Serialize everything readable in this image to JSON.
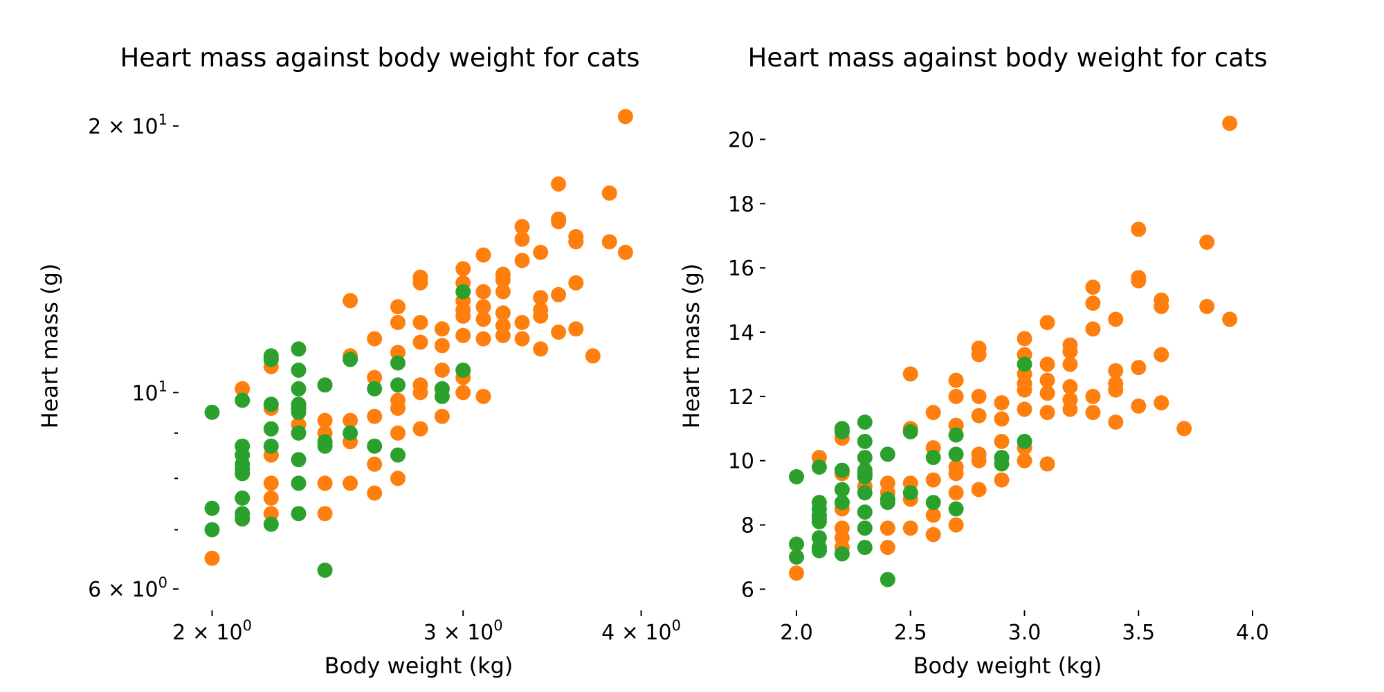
{
  "figure": {
    "background": "#ffffff"
  },
  "chart_data": [
    {
      "type": "scatter",
      "title": "Heart mass against body weight for cats",
      "xlabel": "Body weight (kg)",
      "ylabel": "Heart mass (g)",
      "xscale": "log",
      "yscale": "log",
      "xlim": [
        1.92,
        4.12
      ],
      "ylim": [
        5.8,
        21.0
      ],
      "xticks": [
        {
          "value": 2,
          "base": "2 × 10",
          "exp": "0"
        },
        {
          "value": 3,
          "base": "3 × 10",
          "exp": "0"
        },
        {
          "value": 4,
          "base": "4 × 10",
          "exp": "0"
        }
      ],
      "yticks": [
        {
          "value": 6,
          "base": "6 × 10",
          "exp": "0"
        },
        {
          "value": 10,
          "base": "10",
          "exp": "1"
        },
        {
          "value": 20,
          "base": "2 × 10",
          "exp": "1"
        }
      ],
      "yminor": [
        7,
        8,
        9
      ],
      "grid": false,
      "series_ref": "shared"
    },
    {
      "type": "scatter",
      "title": "Heart mass against body weight for cats",
      "xlabel": "Body weight (kg)",
      "ylabel": "Heart mass (g)",
      "xscale": "linear",
      "yscale": "linear",
      "xlim": [
        1.9,
        4.1
      ],
      "ylim": [
        5.6,
        21.0
      ],
      "xticks": [
        {
          "value": 2.0,
          "label": "2.0"
        },
        {
          "value": 2.5,
          "label": "2.5"
        },
        {
          "value": 3.0,
          "label": "3.0"
        },
        {
          "value": 3.5,
          "label": "3.5"
        },
        {
          "value": 4.0,
          "label": "4.0"
        }
      ],
      "yticks": [
        {
          "value": 6,
          "label": "6"
        },
        {
          "value": 8,
          "label": "8"
        },
        {
          "value": 10,
          "label": "10"
        },
        {
          "value": 12,
          "label": "12"
        },
        {
          "value": 14,
          "label": "14"
        },
        {
          "value": 16,
          "label": "16"
        },
        {
          "value": 18,
          "label": "18"
        },
        {
          "value": 20,
          "label": "20"
        }
      ],
      "grid": false,
      "series_ref": "shared"
    }
  ],
  "series": [
    {
      "color": "#ff7f0e",
      "points": [
        [
          2.0,
          6.5
        ],
        [
          2.1,
          10.1
        ],
        [
          2.1,
          7.2
        ],
        [
          2.2,
          10.7
        ],
        [
          2.2,
          9.6
        ],
        [
          2.2,
          8.5
        ],
        [
          2.2,
          7.9
        ],
        [
          2.2,
          7.6
        ],
        [
          2.2,
          7.3
        ],
        [
          2.3,
          9.6
        ],
        [
          2.3,
          9.2
        ],
        [
          2.3,
          9.6
        ],
        [
          2.4,
          9.3
        ],
        [
          2.4,
          9.0
        ],
        [
          2.4,
          7.9
        ],
        [
          2.4,
          7.3
        ],
        [
          2.5,
          12.7
        ],
        [
          2.5,
          11.0
        ],
        [
          2.5,
          9.3
        ],
        [
          2.5,
          8.8
        ],
        [
          2.5,
          7.9
        ],
        [
          2.6,
          11.5
        ],
        [
          2.6,
          10.4
        ],
        [
          2.6,
          9.4
        ],
        [
          2.6,
          8.3
        ],
        [
          2.6,
          7.7
        ],
        [
          2.7,
          12.5
        ],
        [
          2.7,
          12.0
        ],
        [
          2.7,
          11.1
        ],
        [
          2.7,
          9.8
        ],
        [
          2.7,
          9.6
        ],
        [
          2.7,
          9.0
        ],
        [
          2.7,
          8.0
        ],
        [
          2.8,
          13.5
        ],
        [
          2.8,
          13.3
        ],
        [
          2.8,
          12.0
        ],
        [
          2.8,
          11.4
        ],
        [
          2.8,
          10.2
        ],
        [
          2.8,
          10.0
        ],
        [
          2.8,
          9.1
        ],
        [
          2.9,
          11.8
        ],
        [
          2.9,
          11.3
        ],
        [
          2.9,
          10.6
        ],
        [
          2.9,
          10.1
        ],
        [
          2.9,
          9.4
        ],
        [
          3.0,
          13.8
        ],
        [
          3.0,
          13.3
        ],
        [
          3.0,
          12.7
        ],
        [
          3.0,
          12.4
        ],
        [
          3.0,
          12.2
        ],
        [
          3.0,
          11.6
        ],
        [
          3.0,
          10.4
        ],
        [
          3.0,
          10.0
        ],
        [
          3.1,
          14.3
        ],
        [
          3.1,
          13.0
        ],
        [
          3.1,
          12.5
        ],
        [
          3.1,
          12.1
        ],
        [
          3.1,
          11.5
        ],
        [
          3.1,
          9.9
        ],
        [
          3.2,
          13.6
        ],
        [
          3.2,
          13.4
        ],
        [
          3.2,
          13.0
        ],
        [
          3.2,
          12.3
        ],
        [
          3.2,
          11.9
        ],
        [
          3.2,
          11.6
        ],
        [
          3.3,
          15.4
        ],
        [
          3.3,
          14.9
        ],
        [
          3.3,
          14.1
        ],
        [
          3.3,
          12.0
        ],
        [
          3.3,
          11.5
        ],
        [
          3.4,
          14.4
        ],
        [
          3.4,
          12.8
        ],
        [
          3.4,
          12.4
        ],
        [
          3.4,
          12.2
        ],
        [
          3.4,
          11.2
        ],
        [
          3.5,
          17.2
        ],
        [
          3.5,
          15.7
        ],
        [
          3.5,
          15.6
        ],
        [
          3.5,
          12.9
        ],
        [
          3.5,
          11.7
        ],
        [
          3.6,
          15.0
        ],
        [
          3.6,
          14.8
        ],
        [
          3.6,
          13.3
        ],
        [
          3.6,
          11.8
        ],
        [
          3.7,
          11.0
        ],
        [
          3.8,
          16.8
        ],
        [
          3.8,
          14.8
        ],
        [
          3.9,
          20.5
        ],
        [
          3.9,
          14.4
        ]
      ]
    },
    {
      "color": "#2ca02c",
      "points": [
        [
          2.0,
          7.0
        ],
        [
          2.0,
          7.4
        ],
        [
          2.0,
          9.5
        ],
        [
          2.1,
          7.2
        ],
        [
          2.1,
          7.3
        ],
        [
          2.1,
          7.6
        ],
        [
          2.1,
          8.1
        ],
        [
          2.1,
          8.2
        ],
        [
          2.1,
          8.3
        ],
        [
          2.1,
          8.5
        ],
        [
          2.1,
          8.7
        ],
        [
          2.1,
          9.8
        ],
        [
          2.2,
          7.1
        ],
        [
          2.2,
          8.7
        ],
        [
          2.2,
          9.1
        ],
        [
          2.2,
          9.7
        ],
        [
          2.2,
          10.9
        ],
        [
          2.2,
          11.0
        ],
        [
          2.3,
          7.3
        ],
        [
          2.3,
          7.9
        ],
        [
          2.3,
          8.4
        ],
        [
          2.3,
          9.0
        ],
        [
          2.3,
          9.5
        ],
        [
          2.3,
          9.6
        ],
        [
          2.3,
          9.7
        ],
        [
          2.3,
          10.1
        ],
        [
          2.3,
          10.6
        ],
        [
          2.3,
          11.2
        ],
        [
          2.4,
          6.3
        ],
        [
          2.4,
          8.7
        ],
        [
          2.4,
          8.8
        ],
        [
          2.4,
          10.2
        ],
        [
          2.5,
          9.0
        ],
        [
          2.5,
          10.9
        ],
        [
          2.6,
          8.7
        ],
        [
          2.6,
          10.1
        ],
        [
          2.7,
          8.5
        ],
        [
          2.7,
          10.2
        ],
        [
          2.7,
          10.8
        ],
        [
          2.9,
          9.9
        ],
        [
          2.9,
          10.1
        ],
        [
          3.0,
          10.6
        ],
        [
          3.0,
          13.0
        ]
      ]
    }
  ]
}
